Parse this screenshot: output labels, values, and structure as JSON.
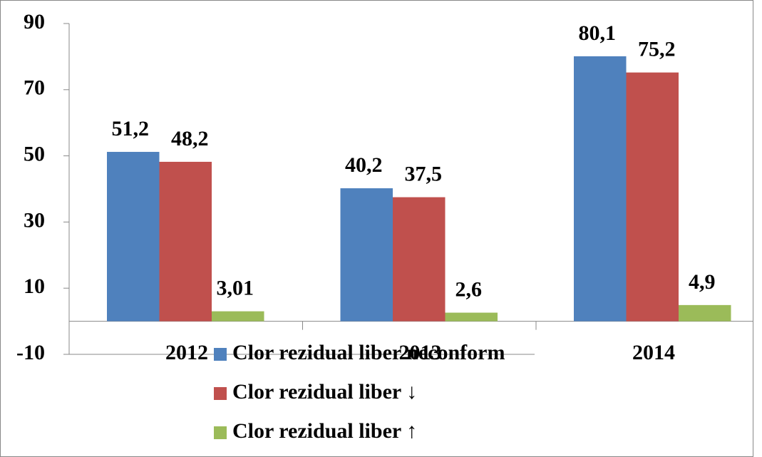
{
  "chart_data": {
    "type": "bar",
    "categories": [
      "2012",
      "2013",
      "2014"
    ],
    "series": [
      {
        "name": "Clor rezidual liber neconform",
        "color": "#4f81bd",
        "values": [
          51.2,
          40.2,
          80.1
        ],
        "value_labels": [
          "51,2",
          "40,2",
          "80,1"
        ]
      },
      {
        "name": "Clor rezidual liber ↓",
        "color": "#c0504d",
        "values": [
          48.2,
          37.5,
          75.2
        ],
        "value_labels": [
          "48,2",
          "37,5",
          "75,2"
        ]
      },
      {
        "name": "Clor rezidual liber ↑",
        "color": "#9bbb59",
        "values": [
          3.01,
          2.6,
          4.9
        ],
        "value_labels": [
          "3,01",
          "2,6",
          "4,9"
        ]
      }
    ],
    "ylim": [
      -10,
      90
    ],
    "yticks": [
      -10,
      10,
      30,
      50,
      70,
      90
    ],
    "grid": false
  }
}
